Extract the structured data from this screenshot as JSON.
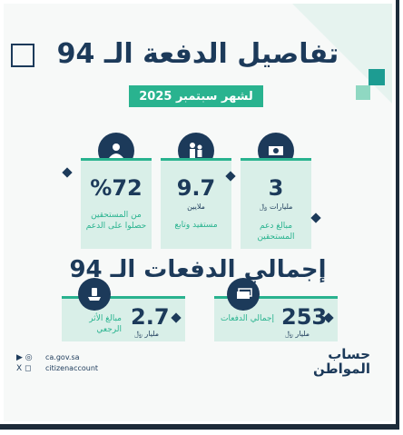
{
  "header": {
    "title": "تفاصيل الدفعة الـ 94",
    "subtitle": "لشهر سبتمبر 2025"
  },
  "stats": [
    {
      "value": "3",
      "unit": "مليارات ﷼",
      "label": "مبالغ دعم المستحقين",
      "icon": "cash-icon"
    },
    {
      "value": "9.7",
      "unit": "ملايين",
      "label": "مستفيد وتابع",
      "icon": "family-icon"
    },
    {
      "value": "%72",
      "unit": "",
      "label": "من المستحقين حصلوا على الدعم",
      "icon": "people-icon"
    }
  ],
  "totals_title": "إجمالي الدفعات الـ 94",
  "totals": [
    {
      "value": "253",
      "unit": "مليار ﷼",
      "label": "إجمالي الدفعات",
      "icon": "cash-stack-icon"
    },
    {
      "value": "2.7",
      "unit": "مليار ﷼",
      "label": "مبالغ الأثر الرجعي",
      "icon": "hand-coin-icon"
    }
  ],
  "footer": {
    "website": "ca.gov.sa",
    "handle": "citizenaccount"
  },
  "logo": {
    "line1": "حساب",
    "line2": "المواطن"
  }
}
